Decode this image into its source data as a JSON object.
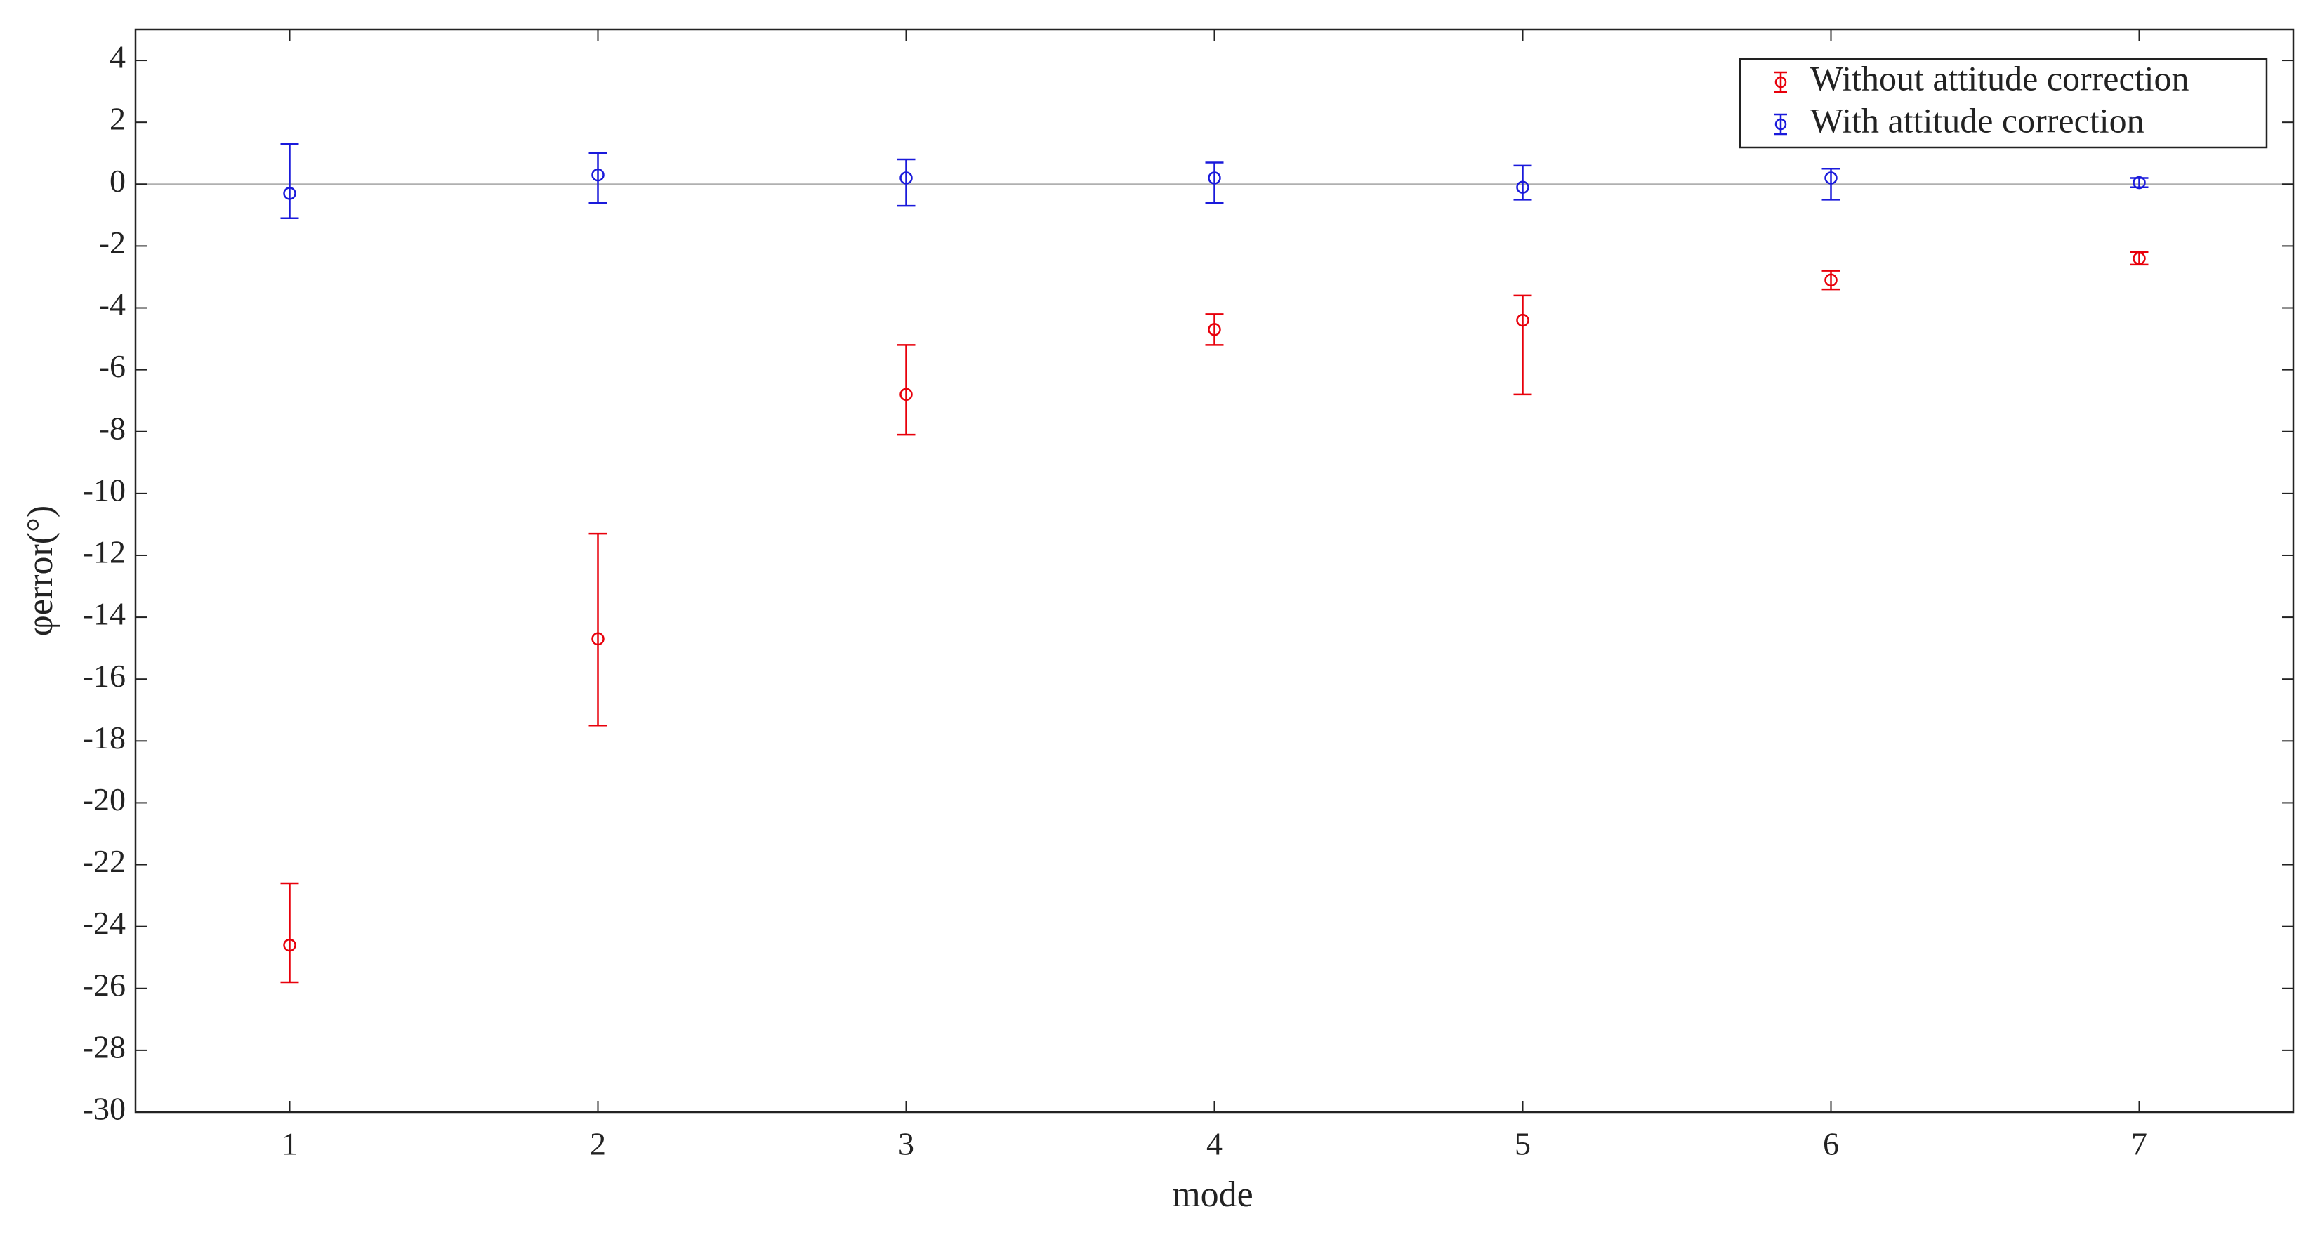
{
  "chart_data": {
    "type": "errorbar",
    "xlabel": "mode",
    "ylabel": "φerror(°)",
    "xlim": [
      0.5,
      7.5
    ],
    "xticks": [
      1,
      2,
      3,
      4,
      5,
      6,
      7
    ],
    "ylim": [
      -30,
      5
    ],
    "yticks": [
      4,
      2,
      0,
      -2,
      -4,
      -6,
      -8,
      -10,
      -12,
      -14,
      -16,
      -18,
      -20,
      -22,
      -24,
      -26,
      -28,
      -30
    ],
    "hline": 0,
    "legend": "upper right",
    "series": [
      {
        "name": "Without attitude correction",
        "color": "#e8000b",
        "x": [
          1,
          2,
          3,
          4,
          5,
          6,
          7
        ],
        "values": [
          -24.6,
          -14.7,
          -6.8,
          -4.7,
          -4.4,
          -3.1,
          -2.4
        ],
        "err_plus": [
          2.0,
          3.4,
          1.6,
          0.5,
          0.8,
          0.3,
          0.2
        ],
        "err_minus": [
          1.2,
          2.8,
          1.3,
          0.5,
          2.4,
          0.3,
          0.2
        ]
      },
      {
        "name": "With attitude correction",
        "color": "#1a1adb",
        "x": [
          1,
          2,
          3,
          4,
          5,
          6,
          7
        ],
        "values": [
          -0.3,
          0.3,
          0.2,
          0.2,
          -0.1,
          0.2,
          0.05
        ],
        "err_plus": [
          1.6,
          0.7,
          0.6,
          0.5,
          0.7,
          0.3,
          0.15
        ],
        "err_minus": [
          0.8,
          0.9,
          0.9,
          0.8,
          0.4,
          0.7,
          0.15
        ]
      }
    ]
  }
}
